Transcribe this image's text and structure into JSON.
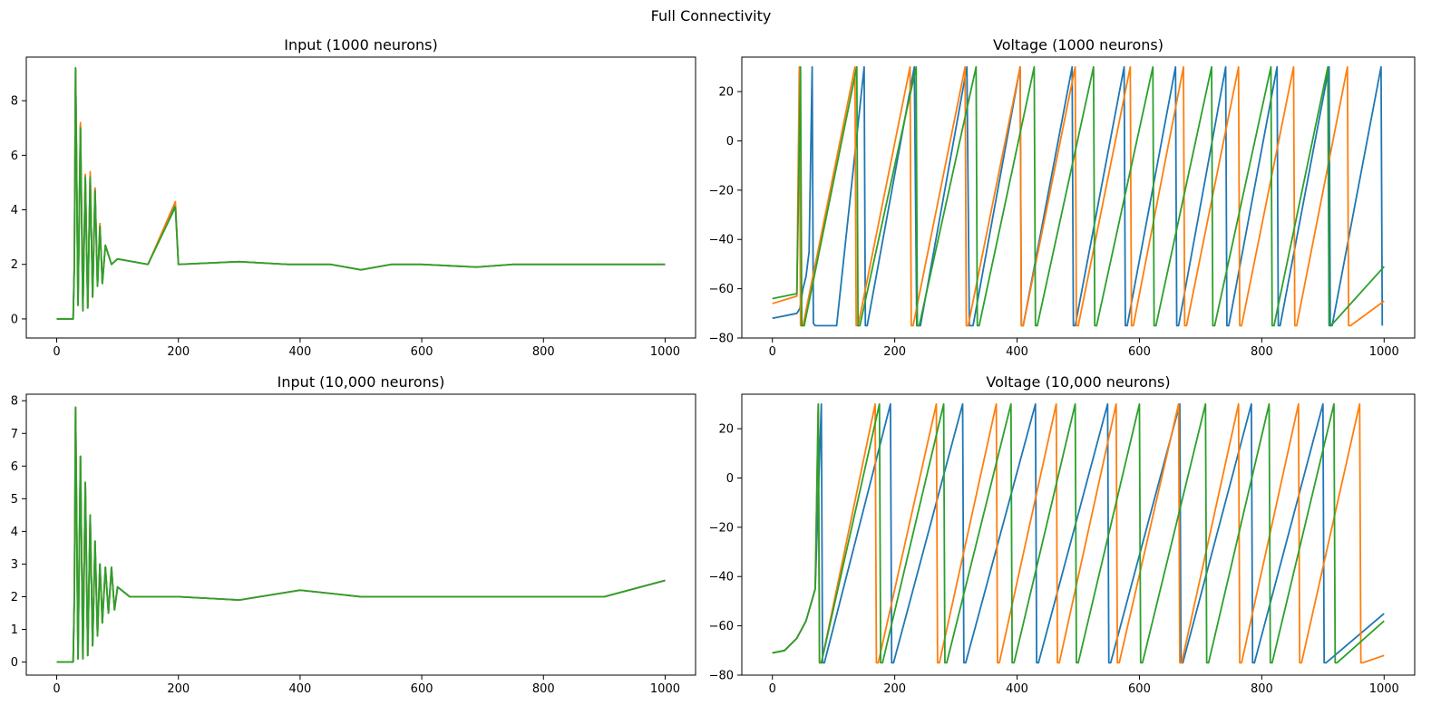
{
  "figure": {
    "suptitle": "Full Connectivity"
  },
  "colors": {
    "series_1": "#1f77b4",
    "series_2": "#ff7f0e",
    "series_3": "#2ca02c"
  },
  "chart_data": [
    {
      "type": "line",
      "title": "Input (1000 neurons)",
      "xlim": [
        -50,
        1050
      ],
      "ylim": [
        -0.7,
        9.6
      ],
      "xticks": [
        0,
        200,
        400,
        600,
        800,
        1000
      ],
      "yticks": [
        0,
        2,
        4,
        6,
        8
      ],
      "grid": false,
      "series": [
        {
          "color": "#1f77b4",
          "x": [
            0,
            27,
            29,
            31,
            35,
            39,
            43,
            47,
            51,
            55,
            59,
            63,
            67,
            71,
            75,
            80,
            90,
            100,
            150,
            195,
            200,
            300,
            380,
            450,
            500,
            550,
            600,
            690,
            750,
            800,
            900,
            940,
            1000
          ],
          "y": [
            0,
            0,
            2,
            9.2,
            0.5,
            7.1,
            0.3,
            5.2,
            0.4,
            5.3,
            0.8,
            4.8,
            1.2,
            3.4,
            1.3,
            2.7,
            2.0,
            2.2,
            2.0,
            4.2,
            2.0,
            2.1,
            2.0,
            2.0,
            1.8,
            2.0,
            2.0,
            1.9,
            2.0,
            2.0,
            2.0,
            2.0,
            2.0
          ]
        },
        {
          "color": "#ff7f0e",
          "x": [
            0,
            27,
            29,
            31,
            35,
            39,
            43,
            47,
            51,
            55,
            59,
            63,
            67,
            71,
            75,
            80,
            90,
            100,
            150,
            195,
            200,
            300,
            380,
            450,
            500,
            550,
            600,
            690,
            750,
            800,
            900,
            940,
            1000
          ],
          "y": [
            0,
            0,
            2,
            9.2,
            0.5,
            7.2,
            0.3,
            5.3,
            0.4,
            5.4,
            0.8,
            4.8,
            1.2,
            3.5,
            1.3,
            2.7,
            2.0,
            2.2,
            2.0,
            4.3,
            2.0,
            2.1,
            2.0,
            2.0,
            1.8,
            2.0,
            2.0,
            1.9,
            2.0,
            2.0,
            2.0,
            2.0,
            2.0
          ]
        },
        {
          "color": "#2ca02c",
          "x": [
            0,
            27,
            29,
            31,
            35,
            39,
            43,
            47,
            51,
            55,
            59,
            63,
            67,
            71,
            75,
            80,
            90,
            100,
            150,
            195,
            200,
            300,
            380,
            450,
            500,
            550,
            600,
            690,
            750,
            800,
            900,
            940,
            1000
          ],
          "y": [
            0,
            0,
            2,
            9.2,
            0.5,
            7.0,
            0.3,
            5.2,
            0.4,
            5.2,
            0.8,
            4.7,
            1.2,
            3.4,
            1.3,
            2.7,
            2.0,
            2.2,
            2.0,
            4.1,
            2.0,
            2.1,
            2.0,
            2.0,
            1.8,
            2.0,
            2.0,
            1.9,
            2.0,
            2.0,
            2.0,
            2.0,
            2.0
          ]
        }
      ]
    },
    {
      "type": "line",
      "title": "Voltage (1000 neurons)",
      "xlim": [
        -50,
        1050
      ],
      "ylim": [
        -80,
        34
      ],
      "xticks": [
        0,
        200,
        400,
        600,
        800,
        1000
      ],
      "yticks": [
        -80,
        -60,
        -40,
        -20,
        0,
        20
      ],
      "grid": false,
      "series": [
        {
          "color": "#1f77b4",
          "x": [
            0,
            40,
            45,
            50,
            55,
            60,
            65,
            67,
            70,
            105,
            150,
            152,
            155,
            232,
            236,
            238,
            242,
            318,
            322,
            324,
            328,
            405,
            407,
            410,
            490,
            492,
            495,
            575,
            577,
            580,
            659,
            661,
            664,
            741,
            743,
            746,
            825,
            827,
            830,
            910,
            912,
            915,
            995,
            997
          ],
          "y": [
            -72,
            -70,
            -68,
            -60,
            -55,
            -45,
            30,
            -74,
            -75,
            -75,
            30,
            -75,
            -75,
            30,
            -75,
            -75,
            -75,
            30,
            -75,
            -75,
            -75,
            30,
            -75,
            -75,
            30,
            -75,
            -75,
            30,
            -75,
            -75,
            30,
            -75,
            -75,
            30,
            -75,
            -75,
            30,
            -75,
            -75,
            30,
            -75,
            -75,
            30,
            -75
          ]
        },
        {
          "color": "#ff7f0e",
          "x": [
            0,
            40,
            44,
            46,
            50,
            135,
            137,
            140,
            225,
            227,
            230,
            315,
            317,
            320,
            405,
            407,
            410,
            495,
            497,
            500,
            585,
            587,
            590,
            672,
            674,
            677,
            762,
            764,
            767,
            852,
            854,
            857,
            940,
            942,
            945,
            1000
          ],
          "y": [
            -66,
            -63,
            30,
            -75,
            -75,
            30,
            -75,
            -75,
            30,
            -75,
            -75,
            30,
            -75,
            -75,
            30,
            -75,
            -75,
            30,
            -75,
            -75,
            30,
            -75,
            -75,
            30,
            -75,
            -75,
            30,
            -75,
            -75,
            30,
            -75,
            -75,
            30,
            -75,
            -75,
            -65
          ]
        },
        {
          "color": "#2ca02c",
          "x": [
            0,
            40,
            46,
            48,
            52,
            138,
            140,
            143,
            235,
            237,
            240,
            333,
            335,
            338,
            428,
            430,
            433,
            525,
            527,
            530,
            622,
            624,
            627,
            718,
            720,
            723,
            815,
            817,
            820,
            908,
            910,
            913,
            1000
          ],
          "y": [
            -64,
            -62,
            30,
            -75,
            -75,
            30,
            -75,
            -75,
            30,
            -75,
            -75,
            30,
            -75,
            -75,
            30,
            -75,
            -75,
            30,
            -75,
            -75,
            30,
            -75,
            -75,
            30,
            -75,
            -75,
            30,
            -75,
            -75,
            30,
            -75,
            -75,
            -51
          ]
        }
      ]
    },
    {
      "type": "line",
      "title": "Input (10,000 neurons)",
      "xlim": [
        -50,
        1050
      ],
      "ylim": [
        -0.4,
        8.2
      ],
      "xticks": [
        0,
        200,
        400,
        600,
        800,
        1000
      ],
      "yticks": [
        0,
        1,
        2,
        3,
        4,
        5,
        6,
        7,
        8
      ],
      "grid": false,
      "series": [
        {
          "color": "#1f77b4",
          "x": [
            0,
            27,
            29,
            31,
            35,
            39,
            43,
            47,
            51,
            55,
            59,
            63,
            67,
            71,
            75,
            80,
            85,
            90,
            95,
            100,
            120,
            150,
            200,
            300,
            400,
            500,
            600,
            700,
            800,
            900,
            1000
          ],
          "y": [
            0,
            0,
            2,
            7.8,
            0.1,
            6.3,
            0.1,
            5.5,
            0.2,
            4.5,
            0.5,
            3.7,
            0.8,
            3.0,
            1.2,
            2.9,
            1.5,
            2.9,
            1.6,
            2.3,
            2.0,
            2.0,
            2.0,
            1.9,
            2.2,
            2.0,
            2.0,
            2.0,
            2.0,
            2.0,
            2.5
          ]
        },
        {
          "color": "#ff7f0e",
          "x": [
            0,
            27,
            29,
            31,
            35,
            39,
            43,
            47,
            51,
            55,
            59,
            63,
            67,
            71,
            75,
            80,
            85,
            90,
            95,
            100,
            120,
            150,
            200,
            300,
            400,
            500,
            600,
            700,
            800,
            900,
            1000
          ],
          "y": [
            0,
            0,
            2,
            7.8,
            0.1,
            6.3,
            0.1,
            5.5,
            0.2,
            4.5,
            0.5,
            3.7,
            0.8,
            3.0,
            1.2,
            2.9,
            1.5,
            2.9,
            1.6,
            2.3,
            2.0,
            2.0,
            2.0,
            1.9,
            2.2,
            2.0,
            2.0,
            2.0,
            2.0,
            2.0,
            2.5
          ]
        },
        {
          "color": "#2ca02c",
          "x": [
            0,
            27,
            29,
            31,
            35,
            39,
            43,
            47,
            51,
            55,
            59,
            63,
            67,
            71,
            75,
            80,
            85,
            90,
            95,
            100,
            120,
            150,
            200,
            300,
            400,
            500,
            600,
            700,
            800,
            900,
            1000
          ],
          "y": [
            0,
            0,
            2,
            7.8,
            0.1,
            6.3,
            0.1,
            5.5,
            0.2,
            4.5,
            0.5,
            3.7,
            0.8,
            3.0,
            1.2,
            2.9,
            1.5,
            2.9,
            1.6,
            2.3,
            2.0,
            2.0,
            2.0,
            1.9,
            2.2,
            2.0,
            2.0,
            2.0,
            2.0,
            2.0,
            2.5
          ]
        }
      ]
    },
    {
      "type": "line",
      "title": "Voltage (10,000 neurons)",
      "xlim": [
        -50,
        1050
      ],
      "ylim": [
        -80,
        34
      ],
      "xticks": [
        0,
        200,
        400,
        600,
        800,
        1000
      ],
      "yticks": [
        -80,
        -60,
        -40,
        -20,
        0,
        20
      ],
      "grid": false,
      "series": [
        {
          "color": "#1f77b4",
          "x": [
            0,
            20,
            40,
            55,
            70,
            80,
            82,
            85,
            193,
            195,
            198,
            311,
            313,
            316,
            430,
            432,
            435,
            548,
            550,
            553,
            666,
            668,
            671,
            783,
            785,
            788,
            900,
            902,
            905,
            1000
          ],
          "y": [
            -71,
            -70,
            -65,
            -58,
            -45,
            30,
            -75,
            -75,
            30,
            -75,
            -75,
            30,
            -75,
            -75,
            30,
            -75,
            -75,
            30,
            -75,
            -75,
            30,
            -75,
            -75,
            30,
            -75,
            -75,
            30,
            -75,
            -75,
            -55
          ]
        },
        {
          "color": "#ff7f0e",
          "x": [
            0,
            20,
            40,
            55,
            70,
            75,
            77,
            80,
            168,
            170,
            173,
            268,
            270,
            273,
            366,
            368,
            371,
            464,
            466,
            469,
            562,
            564,
            567,
            664,
            666,
            669,
            762,
            764,
            767,
            860,
            862,
            865,
            960,
            962,
            965,
            1000
          ],
          "y": [
            -71,
            -70,
            -65,
            -58,
            -45,
            30,
            -75,
            -75,
            30,
            -75,
            -75,
            30,
            -75,
            -75,
            30,
            -75,
            -75,
            30,
            -75,
            -75,
            30,
            -75,
            -75,
            30,
            -75,
            -75,
            30,
            -75,
            -75,
            30,
            -75,
            -75,
            30,
            -75,
            -75,
            -72
          ]
        },
        {
          "color": "#2ca02c",
          "x": [
            0,
            20,
            40,
            55,
            70,
            75,
            77,
            80,
            175,
            177,
            180,
            280,
            282,
            285,
            390,
            392,
            395,
            495,
            497,
            500,
            600,
            602,
            605,
            708,
            710,
            713,
            812,
            814,
            817,
            918,
            920,
            923,
            1000
          ],
          "y": [
            -71,
            -70,
            -65,
            -58,
            -45,
            30,
            -75,
            -75,
            30,
            -75,
            -75,
            30,
            -75,
            -75,
            30,
            -75,
            -75,
            30,
            -75,
            -75,
            30,
            -75,
            -75,
            30,
            -75,
            -75,
            30,
            -75,
            -75,
            30,
            -75,
            -75,
            -58
          ]
        }
      ]
    }
  ]
}
